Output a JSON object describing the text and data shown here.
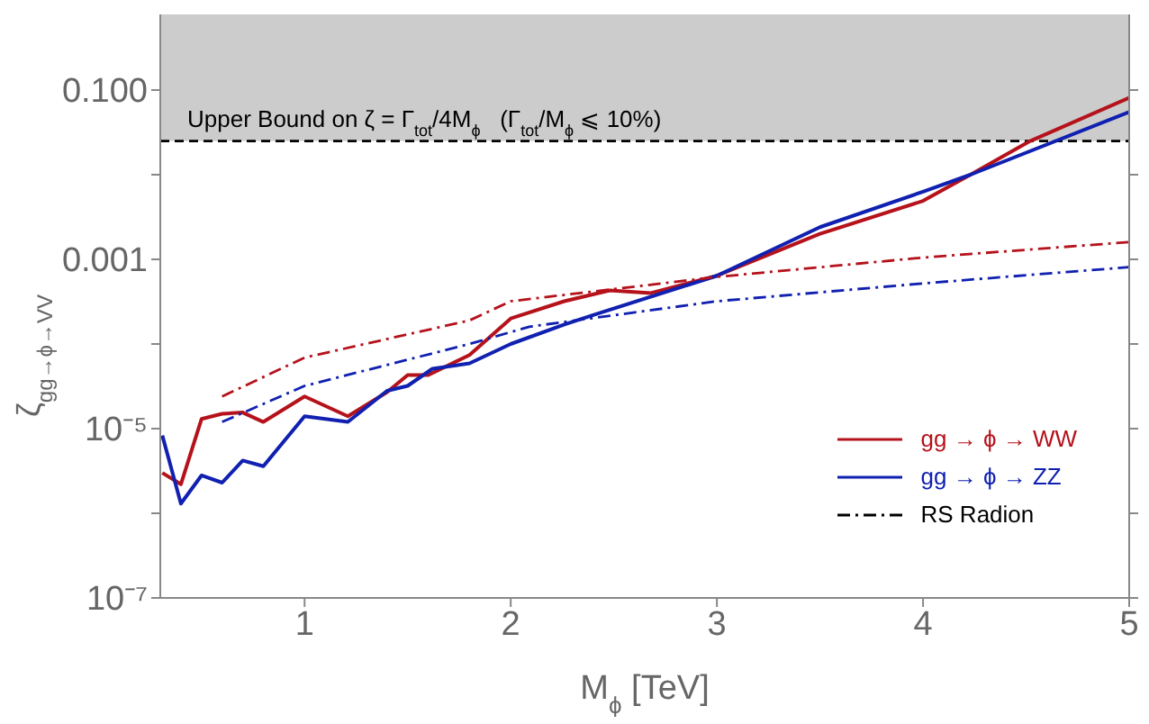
{
  "chart_data": {
    "type": "line",
    "xlabel": "M$_{ϕ}$ [TeV]",
    "ylabel": "ζ$_{gg→ϕ→VV}$",
    "log": "y",
    "xlim": [
      0.3,
      5
    ],
    "xticks": [
      1,
      2,
      3,
      4,
      5
    ],
    "ylim": [
      1e-07,
      1
    ],
    "yticks": [
      {
        "value": 1e-07,
        "label": "10⁻⁷"
      },
      {
        "value": 1e-06,
        "label": null
      },
      {
        "value": 1e-05,
        "label": "10⁻⁵"
      },
      {
        "value": 0.0001,
        "label": null
      },
      0.001,
      {
        "value": 0.01,
        "label": null
      },
      {
        "value": 0.1,
        "label": "0.100"
      },
      {
        "value": 1,
        "label": null
      }
    ],
    "grid": false,
    "legend": "right",
    "marker": "none",
    "series": [
      {
        "name": "gg → ϕ → WW",
        "color": "#b5121b",
        "line_style": "solid",
        "x": [
          0.31,
          0.4,
          0.5,
          0.6,
          0.7,
          0.8,
          1.0,
          1.21,
          1.4,
          1.5,
          1.6,
          1.8,
          2.0,
          2.26,
          2.48,
          2.68,
          3.0,
          3.5,
          4.0,
          4.23,
          4.52,
          5.0
        ],
        "values": [
          3e-06,
          2.2e-06,
          1.3e-05,
          1.5e-05,
          1.55e-05,
          1.2e-05,
          2.4e-05,
          1.4e-05,
          2.7e-05,
          4.3e-05,
          4.3e-05,
          7.4e-05,
          0.0002,
          0.00032,
          0.00043,
          0.0004,
          0.00064,
          0.002,
          0.0049,
          0.01,
          0.025,
          0.081
        ]
      },
      {
        "name": "gg → ϕ → ZZ",
        "color": "#1020b0",
        "line_style": "solid",
        "x": [
          0.31,
          0.4,
          0.5,
          0.6,
          0.7,
          0.8,
          1.0,
          1.21,
          1.4,
          1.5,
          1.62,
          1.8,
          2.0,
          2.26,
          2.4,
          3.0,
          3.5,
          4.0,
          4.23,
          5.0
        ],
        "values": [
          8.3e-06,
          1.3e-06,
          2.8e-06,
          2.3e-06,
          4.2e-06,
          3.6e-06,
          1.4e-05,
          1.2e-05,
          2.8e-05,
          3.2e-05,
          5.1e-05,
          5.9e-05,
          0.0001,
          0.00017,
          0.00022,
          0.00064,
          0.0024,
          0.0063,
          0.01,
          0.055
        ]
      },
      {
        "color": "#b5121b",
        "line_style": "dashed",
        "x": [
          0.6,
          1.0,
          1.8,
          2.0,
          3.0,
          4.0,
          5.0
        ],
        "values": [
          2.4e-05,
          6.9e-05,
          0.00019,
          0.00032,
          0.00062,
          0.00105,
          0.0016
        ]
      },
      {
        "color": "#1020b0",
        "line_style": "dashed",
        "x": [
          0.6,
          1.0,
          1.8,
          2.09,
          3.0,
          4.0,
          5.0
        ],
        "values": [
          1.2e-05,
          3.2e-05,
          0.0001,
          0.00016,
          0.00032,
          0.00052,
          0.00081
        ]
      }
    ],
    "bands": [
      {
        "axis": "y",
        "from": 0.025,
        "to": 1,
        "color": "#cccccc",
        "label": "Upper Bound on ζ = Γ$_{tot}$/4M$_{ϕ}$   (Γ$_{tot}$/M$_{ϕ}$ ⩽ 10%)"
      }
    ],
    "ref_lines": [
      {
        "axis": "y",
        "value": 0.025,
        "color": "#000000",
        "line_style": "dashed"
      }
    ],
    "annotations": [
      "RS Radion"
    ]
  }
}
